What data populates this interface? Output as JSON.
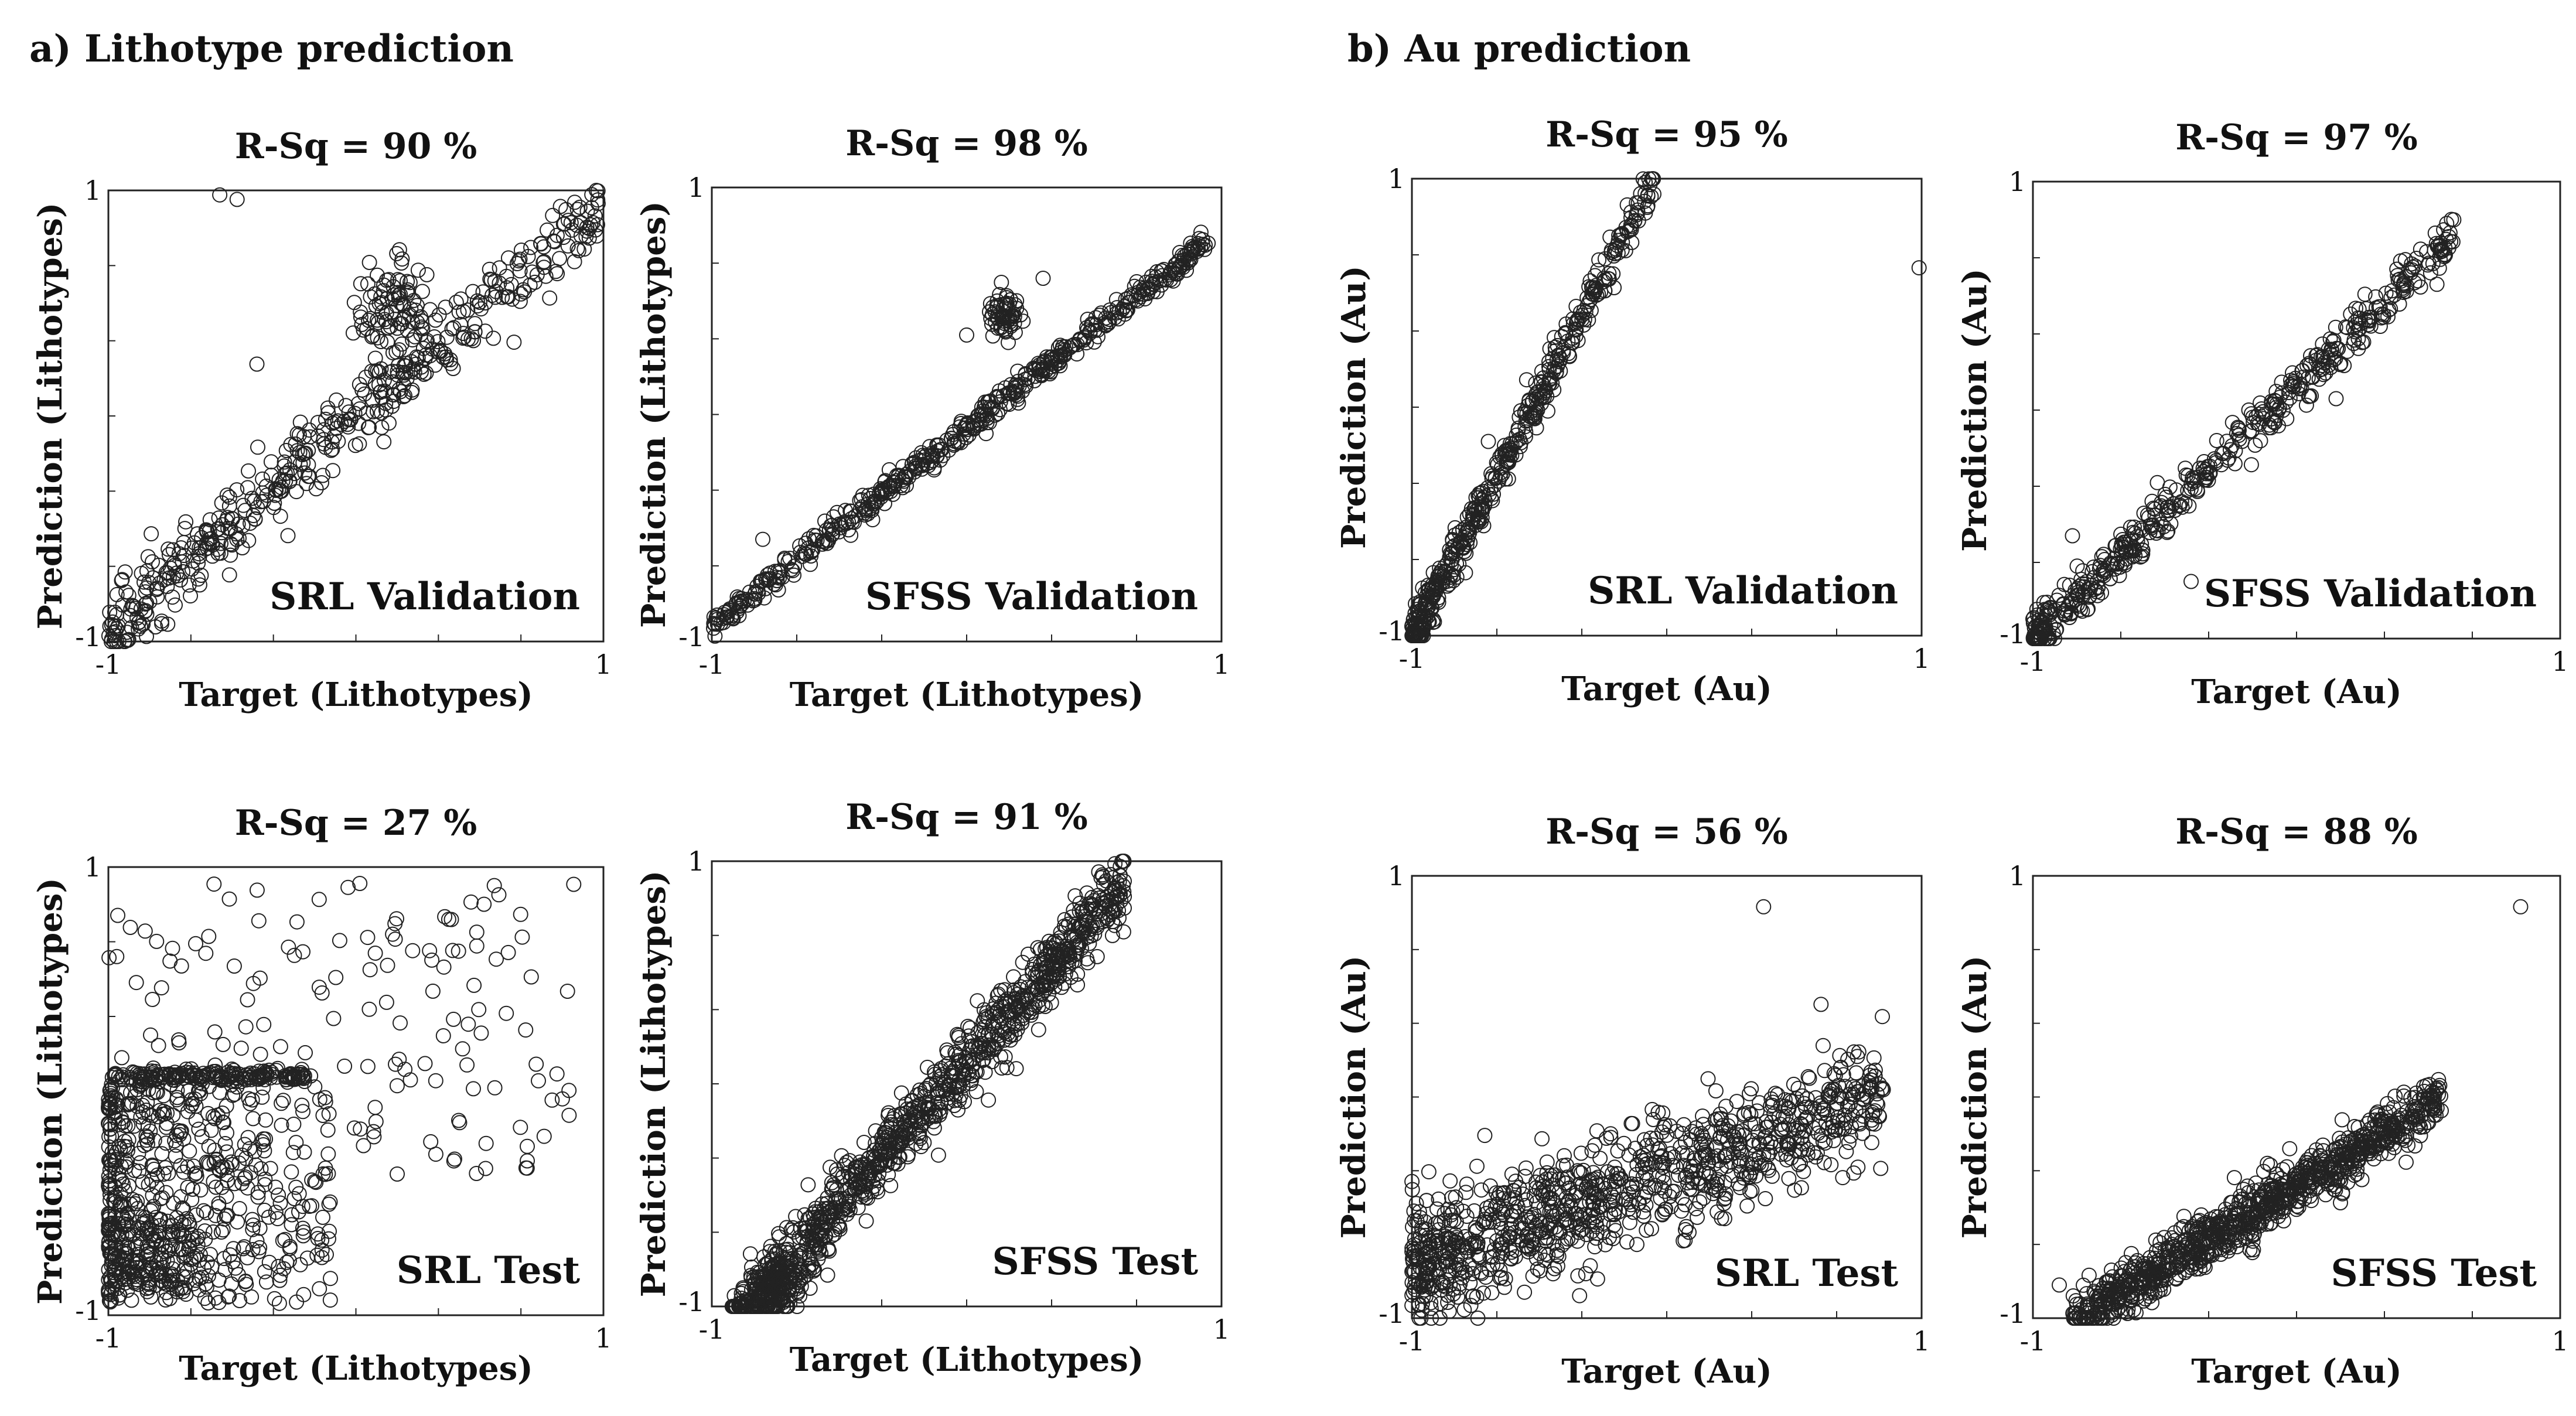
{
  "figure": {
    "panel_a_title": "a) Lithotype prediction",
    "panel_b_title": "b) Au prediction"
  },
  "chart_data": [
    {
      "type": "scatter",
      "id": "a-srl-validation",
      "title": "R-Sq = 90 %",
      "annotation": "SRL Validation",
      "xlabel": "Target (Lithotypes)",
      "ylabel": "Prediction (Lithotypes)",
      "xlim": [
        -1,
        1
      ],
      "ylim": [
        -1,
        1
      ],
      "x_tick_labels": [
        "-1",
        "1"
      ],
      "y_tick_labels": [
        "-1",
        "1"
      ],
      "pattern": {
        "n": 460,
        "slope": 0.95,
        "intercept": 0.0,
        "noise": 0.08,
        "xmin": -1.0,
        "xmax": 0.98,
        "skew": 1.1,
        "cluster": [
          0.15,
          0.45,
          90,
          0.08
        ],
        "outliers": [
          [
            -0.48,
            0.96
          ],
          [
            -0.55,
            0.98
          ],
          [
            -0.4,
            0.23
          ],
          [
            0.15,
            0.28
          ],
          [
            -0.85,
            -0.78
          ]
        ]
      }
    },
    {
      "type": "scatter",
      "id": "a-sfss-validation",
      "title": "R-Sq = 98 %",
      "annotation": "SFSS Validation",
      "xlabel": "Target (Lithotypes)",
      "ylabel": "Prediction (Lithotypes)",
      "xlim": [
        -1,
        1
      ],
      "ylim": [
        -1,
        1
      ],
      "x_tick_labels": [
        "-1",
        "1"
      ],
      "y_tick_labels": [
        "-1",
        "1"
      ],
      "pattern": {
        "n": 520,
        "slope": 0.87,
        "intercept": -0.06,
        "noise": 0.03,
        "xmin": -1.0,
        "xmax": 0.95,
        "skew": 1.0,
        "cluster": [
          0.15,
          0.45,
          60,
          0.03
        ],
        "outliers": [
          [
            0.0,
            0.35
          ],
          [
            -0.8,
            -0.55
          ],
          [
            0.3,
            0.6
          ],
          [
            0.12,
            0.5
          ]
        ]
      }
    },
    {
      "type": "scatter",
      "id": "b-srl-validation",
      "title": "R-Sq = 95 %",
      "annotation": "SRL Validation",
      "xlabel": "Target (Au)",
      "ylabel": "Prediction (Au)",
      "xlim": [
        -1,
        1
      ],
      "ylim": [
        -1,
        1
      ],
      "x_tick_labels": [
        "-1",
        "1"
      ],
      "y_tick_labels": [
        "-1",
        "1"
      ],
      "pattern": {
        "n": 480,
        "slope": 2.1,
        "intercept": 1.1,
        "noise": 0.05,
        "xmin": -1.0,
        "xmax": -0.05,
        "skew": 1.6,
        "cluster": null,
        "outliers": [
          [
            0.99,
            0.61
          ],
          [
            -0.7,
            -0.15
          ],
          [
            -0.55,
            0.12
          ]
        ]
      }
    },
    {
      "type": "scatter",
      "id": "b-sfss-validation",
      "title": "R-Sq = 97 %",
      "annotation": "SFSS Validation",
      "xlabel": "Target (Au)",
      "ylabel": "Prediction (Au)",
      "xlim": [
        -1,
        1
      ],
      "ylim": [
        -1,
        1
      ],
      "x_tick_labels": [
        "-1",
        "1"
      ],
      "y_tick_labels": [
        "-1",
        "1"
      ],
      "pattern": {
        "n": 500,
        "slope": 1.1,
        "intercept": 0.1,
        "noise": 0.05,
        "xmin": -1.0,
        "xmax": 0.6,
        "skew": 1.5,
        "cluster": null,
        "outliers": [
          [
            -0.4,
            -0.75
          ],
          [
            0.15,
            0.05
          ],
          [
            -0.85,
            -0.55
          ]
        ]
      }
    },
    {
      "type": "scatter",
      "id": "a-srl-test",
      "title": "R-Sq = 27 %",
      "annotation": "SRL Test",
      "xlabel": "Target (Lithotypes)",
      "ylabel": "Prediction (Lithotypes)",
      "xlim": [
        -1,
        1
      ],
      "ylim": [
        -1,
        1
      ],
      "x_tick_labels": [
        "-1",
        "1"
      ],
      "y_tick_labels": [
        "-1",
        "1"
      ],
      "pattern": {
        "kind": "srl-test",
        "n": 1000,
        "line_y": 0.07,
        "line_x": [
          -1.0,
          -0.2
        ]
      }
    },
    {
      "type": "scatter",
      "id": "a-sfss-test",
      "title": "R-Sq = 91 %",
      "annotation": "SFSS Test",
      "xlabel": "Target (Lithotypes)",
      "ylabel": "Prediction (Lithotypes)",
      "xlim": [
        -1,
        1
      ],
      "ylim": [
        -1,
        1
      ],
      "x_tick_labels": [
        "-1",
        "1"
      ],
      "y_tick_labels": [
        "-1",
        "1"
      ],
      "pattern": {
        "n": 950,
        "slope": 1.3,
        "intercept": 0.1,
        "noise": 0.08,
        "xmin": -0.92,
        "xmax": 0.62,
        "skew": 1.0,
        "cluster": [
          -0.75,
          -0.9,
          120,
          0.06
        ],
        "cap_y": 0.07,
        "cap_x": [
          -0.45,
          -0.1
        ],
        "outliers": [
          [
            0.1,
            0.1
          ],
          [
            -0.2,
            -0.2
          ]
        ]
      }
    },
    {
      "type": "scatter",
      "id": "b-srl-test",
      "title": "R-Sq = 56 %",
      "annotation": "SRL Test",
      "xlabel": "Target (Au)",
      "ylabel": "Prediction (Au)",
      "xlim": [
        -1,
        1
      ],
      "ylim": [
        -1,
        1
      ],
      "x_tick_labels": [
        "-1",
        "1"
      ],
      "y_tick_labels": [
        "-1",
        "1"
      ],
      "pattern": {
        "n": 1000,
        "slope": 0.42,
        "intercept": -0.35,
        "noise": 0.13,
        "xmin": -1.0,
        "xmax": 0.85,
        "skew": 1.3,
        "cluster": null,
        "outliers": [
          [
            0.38,
            0.86
          ]
        ]
      }
    },
    {
      "type": "scatter",
      "id": "b-sfss-test",
      "title": "R-Sq = 88 %",
      "annotation": "SFSS Test",
      "xlabel": "Target (Au)",
      "ylabel": "Prediction (Au)",
      "xlim": [
        -1,
        1
      ],
      "ylim": [
        -1,
        1
      ],
      "x_tick_labels": [
        "-1",
        "1"
      ],
      "y_tick_labels": [
        "-1",
        "1"
      ],
      "pattern": {
        "n": 950,
        "slope": 0.72,
        "intercept": -0.4,
        "noise": 0.06,
        "xmin": -0.85,
        "xmax": 0.55,
        "skew": 1.0,
        "cluster": null,
        "outliers": [
          [
            0.85,
            0.86
          ],
          [
            -0.9,
            -0.85
          ]
        ]
      }
    }
  ]
}
